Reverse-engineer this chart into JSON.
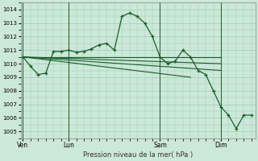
{
  "title": "Pression niveau de la mer( hPa )",
  "bg_color": "#cce8d8",
  "grid_color": "#99ccb3",
  "line_color": "#1a5c2a",
  "ylim": [
    1004.5,
    1014.5
  ],
  "yticks": [
    1005,
    1006,
    1007,
    1008,
    1009,
    1010,
    1011,
    1012,
    1013,
    1014
  ],
  "xtick_labels": [
    "Ven",
    "Lun",
    "Sam",
    "Dim"
  ],
  "xtick_positions": [
    0,
    6,
    18,
    26
  ],
  "vline_positions": [
    0,
    6,
    18,
    26
  ],
  "xlim": [
    -0.3,
    30.5
  ],
  "total_steps": 31,
  "main_line_x": [
    0,
    1,
    2,
    3,
    4,
    5,
    6,
    7,
    8,
    9,
    10,
    11,
    12,
    13,
    14,
    15,
    16,
    17,
    18,
    19,
    20,
    21,
    22,
    23,
    24,
    25,
    26,
    27,
    28,
    29,
    30
  ],
  "main_line_y": [
    1010.5,
    1009.8,
    1009.2,
    1009.3,
    1010.9,
    1010.9,
    1011.0,
    1010.85,
    1010.9,
    1011.1,
    1011.4,
    1011.5,
    1011.0,
    1013.5,
    1013.75,
    1013.5,
    1013.0,
    1012.0,
    1010.5,
    1010.0,
    1010.2,
    1011.0,
    1010.5,
    1009.5,
    1009.2,
    1008.0,
    1006.8,
    1006.2,
    1005.2,
    1006.2,
    1006.2
  ],
  "fan_lines": [
    {
      "x": [
        0,
        26
      ],
      "y": [
        1010.5,
        1010.5
      ]
    },
    {
      "x": [
        0,
        26
      ],
      "y": [
        1010.5,
        1010.0
      ]
    },
    {
      "x": [
        0,
        26
      ],
      "y": [
        1010.5,
        1009.5
      ]
    },
    {
      "x": [
        0,
        22
      ],
      "y": [
        1010.5,
        1009.0
      ]
    }
  ]
}
